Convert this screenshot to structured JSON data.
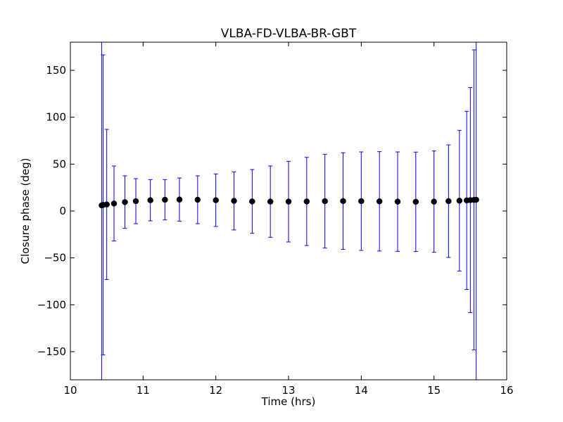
{
  "chart_data": {
    "type": "scatter",
    "title": "VLBA-FD-VLBA-BR-GBT",
    "xlabel": "Time (hrs)",
    "ylabel": "Closure phase (deg)",
    "xlim": [
      10,
      16
    ],
    "ylim": [
      -180,
      180
    ],
    "x_ticks": [
      10,
      11,
      12,
      13,
      14,
      15,
      16
    ],
    "x_tick_labels": [
      "10",
      "11",
      "12",
      "13",
      "14",
      "15",
      "16"
    ],
    "y_ticks": [
      150,
      100,
      50,
      0,
      -50,
      -100,
      -150
    ],
    "y_tick_labels": [
      "150",
      "100",
      "50",
      "0",
      "−50",
      "−100",
      "−150"
    ],
    "grid": false,
    "legend": "none",
    "series": [
      {
        "kind": "points_with_error_bars",
        "marker_color": "#000000",
        "errorbar_color": "#0000ff",
        "x": [
          10.43,
          10.45,
          10.5,
          10.6,
          10.75,
          10.9,
          11.1,
          11.3,
          11.5,
          11.75,
          12.0,
          12.25,
          12.5,
          12.75,
          13.0,
          13.25,
          13.5,
          13.75,
          14.0,
          14.25,
          14.5,
          14.75,
          15.0,
          15.2,
          15.35,
          15.45,
          15.5,
          15.55,
          15.58
        ],
        "y": [
          6,
          6.5,
          7,
          8,
          9.5,
          10.5,
          11.5,
          12,
          12.2,
          12,
          11.5,
          10.8,
          10.2,
          10,
          10,
          10.2,
          10.5,
          10.6,
          10.5,
          10.3,
          10,
          9.8,
          10,
          10.5,
          11,
          11.3,
          11.6,
          11.8,
          12
        ],
        "err": [
          190,
          160,
          80,
          40,
          28,
          24,
          22,
          21.5,
          23,
          25.5,
          28,
          31,
          34,
          38,
          43,
          47,
          50,
          51.5,
          52.5,
          53,
          53,
          53,
          54,
          60,
          75,
          95,
          120,
          160,
          200
        ]
      }
    ]
  }
}
